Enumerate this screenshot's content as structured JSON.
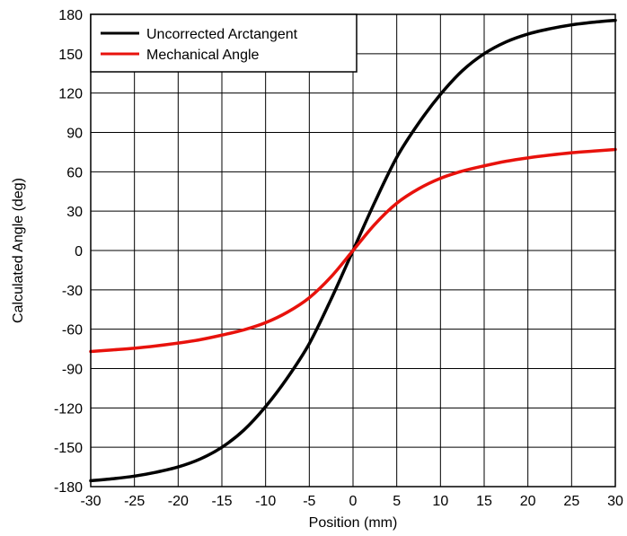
{
  "chart_data": {
    "type": "line",
    "xlabel": "Position (mm)",
    "ylabel": "Calculated Angle (deg)",
    "xlim": [
      -30,
      30
    ],
    "ylim": [
      -180,
      180
    ],
    "xticks": [
      -30,
      -25,
      -20,
      -15,
      -10,
      -5,
      0,
      5,
      10,
      15,
      20,
      25,
      30
    ],
    "yticks": [
      -180,
      -150,
      -120,
      -90,
      -60,
      -30,
      0,
      30,
      60,
      90,
      120,
      150,
      180
    ],
    "grid": true,
    "legend_position": "top-left",
    "series": [
      {
        "name": "Uncorrected Arctangent",
        "color": "#000000",
        "x": [
          -30,
          -27.5,
          -25,
          -22.5,
          -20,
          -17.5,
          -15,
          -12.5,
          -10,
          -7.5,
          -5,
          -2.5,
          0,
          2.5,
          5,
          7.5,
          10,
          12.5,
          15,
          17.5,
          20,
          22.5,
          25,
          27.5,
          30
        ],
        "y": [
          -175.5,
          -174.0,
          -172.0,
          -169.0,
          -165.0,
          -159.0,
          -150.0,
          -137.0,
          -119.0,
          -97.0,
          -71.0,
          -37.0,
          0,
          37.0,
          71.0,
          97.0,
          119.0,
          137.0,
          150.0,
          159.0,
          165.0,
          169.0,
          172.0,
          174.0,
          175.5
        ]
      },
      {
        "name": "Mechanical Angle",
        "color": "#e8120c",
        "x": [
          -30,
          -27.5,
          -25,
          -22.5,
          -20,
          -17.5,
          -15,
          -12.5,
          -10,
          -7.5,
          -5,
          -2.5,
          0,
          2.5,
          5,
          7.5,
          10,
          12.5,
          15,
          17.5,
          20,
          22.5,
          25,
          27.5,
          30
        ],
        "y": [
          -77.0,
          -75.8,
          -74.5,
          -72.7,
          -70.6,
          -68.0,
          -64.5,
          -60.5,
          -55.0,
          -47.0,
          -36.0,
          -20.0,
          0,
          20.0,
          36.0,
          47.0,
          55.0,
          60.5,
          64.5,
          68.0,
          70.6,
          72.7,
          74.5,
          75.8,
          77.0
        ]
      }
    ]
  }
}
